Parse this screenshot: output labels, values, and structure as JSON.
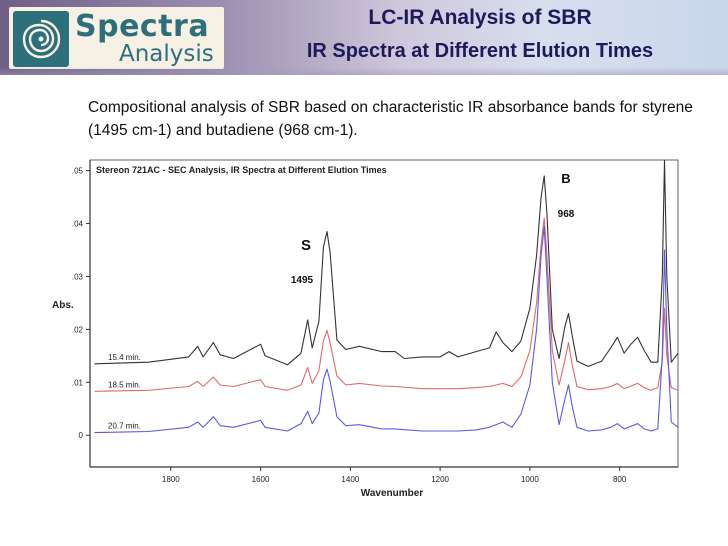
{
  "header": {
    "title": "LC-IR Analysis of SBR",
    "subtitle": "IR Spectra at Different Elution Times",
    "logo_line1": "Spectra",
    "logo_line2": "Analysis",
    "colors": {
      "title": "#1e1a5a",
      "logo_text": "#2d6f7a",
      "banner_left": "#6f5f86",
      "banner_right": "#c9d6ea"
    }
  },
  "description": "Compositional analysis of SBR based on characteristic IR absorbance bands for styrene (1495 cm-1) and butadiene (968 cm-1).",
  "chart_data": {
    "type": "line",
    "title": "Stereon 721AC - SEC Analysis, IR Spectra at Different Elution Times",
    "xlabel": "Wavenumber",
    "ylabel": "Abs.",
    "xlim": [
      1980,
      670
    ],
    "x_reversed": true,
    "ylim": [
      -0.006,
      0.052
    ],
    "x_ticks": [
      1800,
      1600,
      1400,
      1200,
      1000,
      800
    ],
    "y_ticks": [
      0,
      0.01,
      0.02,
      0.03,
      0.04,
      0.05
    ],
    "y_tick_labels": [
      "0",
      ".01",
      ".02",
      ".03",
      ".04",
      ".05"
    ],
    "grid": false,
    "annotations": [
      {
        "label": "S",
        "value": "1495"
      },
      {
        "label": "B",
        "value": "968"
      }
    ],
    "series": [
      {
        "name": "15.4 min.",
        "color": "#333333",
        "points": [
          [
            1970,
            0.0135
          ],
          [
            1850,
            0.0138
          ],
          [
            1760,
            0.0148
          ],
          [
            1740,
            0.0168
          ],
          [
            1728,
            0.0148
          ],
          [
            1705,
            0.0175
          ],
          [
            1690,
            0.0152
          ],
          [
            1660,
            0.0145
          ],
          [
            1600,
            0.0172
          ],
          [
            1590,
            0.015
          ],
          [
            1540,
            0.0133
          ],
          [
            1510,
            0.0155
          ],
          [
            1495,
            0.0218
          ],
          [
            1485,
            0.0165
          ],
          [
            1470,
            0.0215
          ],
          [
            1460,
            0.0355
          ],
          [
            1452,
            0.0385
          ],
          [
            1445,
            0.0345
          ],
          [
            1430,
            0.018
          ],
          [
            1410,
            0.0162
          ],
          [
            1380,
            0.0168
          ],
          [
            1330,
            0.0158
          ],
          [
            1300,
            0.0158
          ],
          [
            1280,
            0.0145
          ],
          [
            1240,
            0.0148
          ],
          [
            1200,
            0.0148
          ],
          [
            1180,
            0.0158
          ],
          [
            1160,
            0.0148
          ],
          [
            1120,
            0.0158
          ],
          [
            1090,
            0.0165
          ],
          [
            1075,
            0.0195
          ],
          [
            1060,
            0.0175
          ],
          [
            1040,
            0.0158
          ],
          [
            1020,
            0.0178
          ],
          [
            1000,
            0.024
          ],
          [
            985,
            0.034
          ],
          [
            975,
            0.045
          ],
          [
            968,
            0.049
          ],
          [
            962,
            0.042
          ],
          [
            950,
            0.02
          ],
          [
            935,
            0.0145
          ],
          [
            922,
            0.0205
          ],
          [
            914,
            0.023
          ],
          [
            905,
            0.0185
          ],
          [
            895,
            0.014
          ],
          [
            870,
            0.013
          ],
          [
            840,
            0.014
          ],
          [
            820,
            0.0165
          ],
          [
            805,
            0.0185
          ],
          [
            790,
            0.0155
          ],
          [
            775,
            0.0172
          ],
          [
            760,
            0.0185
          ],
          [
            745,
            0.016
          ],
          [
            730,
            0.0138
          ],
          [
            715,
            0.0138
          ],
          [
            705,
            0.03
          ],
          [
            700,
            0.052
          ],
          [
            695,
            0.03
          ],
          [
            685,
            0.0138
          ],
          [
            670,
            0.0155
          ]
        ]
      },
      {
        "name": "18.5 min.",
        "color": "#e06a6a",
        "points": [
          [
            1970,
            0.0083
          ],
          [
            1850,
            0.0085
          ],
          [
            1760,
            0.0092
          ],
          [
            1740,
            0.0102
          ],
          [
            1728,
            0.0092
          ],
          [
            1705,
            0.011
          ],
          [
            1690,
            0.0095
          ],
          [
            1660,
            0.0092
          ],
          [
            1600,
            0.0105
          ],
          [
            1590,
            0.0092
          ],
          [
            1540,
            0.0085
          ],
          [
            1510,
            0.0095
          ],
          [
            1495,
            0.0128
          ],
          [
            1485,
            0.0098
          ],
          [
            1470,
            0.0122
          ],
          [
            1460,
            0.0178
          ],
          [
            1452,
            0.0198
          ],
          [
            1445,
            0.0175
          ],
          [
            1430,
            0.0112
          ],
          [
            1410,
            0.0095
          ],
          [
            1380,
            0.0098
          ],
          [
            1330,
            0.0093
          ],
          [
            1300,
            0.0092
          ],
          [
            1240,
            0.0088
          ],
          [
            1200,
            0.0088
          ],
          [
            1160,
            0.0088
          ],
          [
            1120,
            0.009
          ],
          [
            1090,
            0.0092
          ],
          [
            1060,
            0.0098
          ],
          [
            1040,
            0.0092
          ],
          [
            1020,
            0.011
          ],
          [
            1000,
            0.016
          ],
          [
            985,
            0.025
          ],
          [
            975,
            0.036
          ],
          [
            968,
            0.041
          ],
          [
            962,
            0.034
          ],
          [
            950,
            0.016
          ],
          [
            935,
            0.0095
          ],
          [
            922,
            0.0142
          ],
          [
            914,
            0.0175
          ],
          [
            905,
            0.013
          ],
          [
            895,
            0.0092
          ],
          [
            870,
            0.0086
          ],
          [
            840,
            0.0088
          ],
          [
            820,
            0.0092
          ],
          [
            805,
            0.0098
          ],
          [
            790,
            0.0088
          ],
          [
            760,
            0.0098
          ],
          [
            745,
            0.009
          ],
          [
            730,
            0.0085
          ],
          [
            715,
            0.009
          ],
          [
            705,
            0.014
          ],
          [
            700,
            0.024
          ],
          [
            695,
            0.015
          ],
          [
            685,
            0.009
          ],
          [
            670,
            0.0085
          ]
        ]
      },
      {
        "name": "20.7 min.",
        "color": "#5a5ae0",
        "points": [
          [
            1970,
            0.0005
          ],
          [
            1850,
            0.0007
          ],
          [
            1760,
            0.0015
          ],
          [
            1740,
            0.0025
          ],
          [
            1728,
            0.0015
          ],
          [
            1705,
            0.0035
          ],
          [
            1690,
            0.0018
          ],
          [
            1660,
            0.0015
          ],
          [
            1600,
            0.0028
          ],
          [
            1590,
            0.0015
          ],
          [
            1540,
            0.0008
          ],
          [
            1510,
            0.0022
          ],
          [
            1495,
            0.0045
          ],
          [
            1485,
            0.0022
          ],
          [
            1470,
            0.0042
          ],
          [
            1460,
            0.0105
          ],
          [
            1452,
            0.0125
          ],
          [
            1445,
            0.0102
          ],
          [
            1430,
            0.0035
          ],
          [
            1410,
            0.0018
          ],
          [
            1380,
            0.002
          ],
          [
            1330,
            0.0012
          ],
          [
            1300,
            0.0012
          ],
          [
            1240,
            0.0008
          ],
          [
            1200,
            0.0008
          ],
          [
            1160,
            0.0008
          ],
          [
            1120,
            0.001
          ],
          [
            1090,
            0.0015
          ],
          [
            1060,
            0.0025
          ],
          [
            1040,
            0.0015
          ],
          [
            1020,
            0.004
          ],
          [
            1000,
            0.0095
          ],
          [
            985,
            0.02
          ],
          [
            975,
            0.034
          ],
          [
            968,
            0.0395
          ],
          [
            962,
            0.03
          ],
          [
            950,
            0.01
          ],
          [
            935,
            0.002
          ],
          [
            922,
            0.0068
          ],
          [
            914,
            0.0095
          ],
          [
            905,
            0.0052
          ],
          [
            895,
            0.0015
          ],
          [
            870,
            0.0008
          ],
          [
            840,
            0.001
          ],
          [
            820,
            0.0015
          ],
          [
            805,
            0.0022
          ],
          [
            790,
            0.0012
          ],
          [
            760,
            0.0022
          ],
          [
            745,
            0.0012
          ],
          [
            730,
            0.0008
          ],
          [
            715,
            0.0012
          ],
          [
            705,
            0.015
          ],
          [
            700,
            0.035
          ],
          [
            695,
            0.02
          ],
          [
            685,
            0.0025
          ],
          [
            670,
            0.0015
          ]
        ]
      }
    ]
  }
}
